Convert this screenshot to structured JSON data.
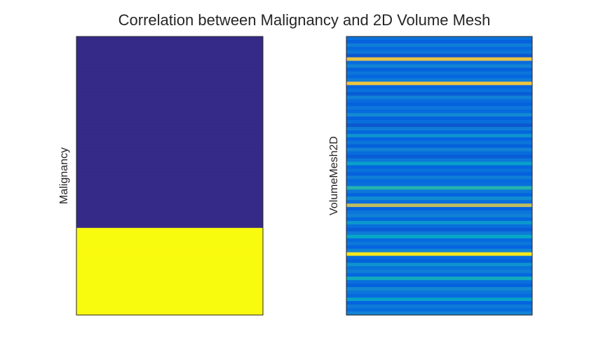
{
  "title": "Correlation between Malignancy and 2D Volume Mesh",
  "chart_data": [
    {
      "type": "heatmap",
      "ylabel": "Malignancy",
      "colormap": "parula",
      "clim": [
        0,
        1
      ],
      "values": [
        0,
        0,
        0,
        0,
        0,
        0,
        0,
        0,
        0,
        0,
        0,
        0,
        0,
        0,
        0,
        0,
        0,
        0,
        0,
        0,
        0,
        0,
        0,
        0,
        0,
        0,
        0,
        0,
        0,
        0,
        0,
        0,
        0,
        0,
        0,
        0,
        0,
        0,
        0,
        0,
        0,
        0,
        0,
        0,
        0,
        0,
        0,
        0,
        0,
        0,
        0,
        0,
        0,
        0,
        0,
        1,
        1,
        1,
        1,
        1,
        1,
        1,
        1,
        1,
        1,
        1,
        1,
        1,
        1,
        1,
        1,
        1,
        1,
        1,
        1,
        1,
        1,
        1,
        1,
        1
      ]
    },
    {
      "type": "heatmap",
      "ylabel": "VolumeMesh2D",
      "colormap": "parula",
      "clim": [
        0,
        1
      ],
      "values": [
        0.18,
        0.12,
        0.22,
        0.15,
        0.2,
        0.1,
        0.8,
        0.16,
        0.24,
        0.12,
        0.19,
        0.14,
        0.21,
        0.82,
        0.13,
        0.18,
        0.11,
        0.23,
        0.16,
        0.12,
        0.2,
        0.15,
        0.26,
        0.12,
        0.17,
        0.1,
        0.22,
        0.14,
        0.3,
        0.13,
        0.19,
        0.12,
        0.24,
        0.16,
        0.11,
        0.2,
        0.35,
        0.14,
        0.18,
        0.12,
        0.22,
        0.15,
        0.17,
        0.45,
        0.2,
        0.13,
        0.28,
        0.16,
        0.7,
        0.12,
        0.19,
        0.23,
        0.14,
        0.32,
        0.17,
        0.11,
        0.21,
        0.38,
        0.15,
        0.2,
        0.13,
        0.25,
        0.95,
        0.16,
        0.12,
        0.3,
        0.18,
        0.22,
        0.14,
        0.4,
        0.17,
        0.12,
        0.26,
        0.19,
        0.15,
        0.35,
        0.13,
        0.21,
        0.16,
        0.24
      ]
    }
  ]
}
